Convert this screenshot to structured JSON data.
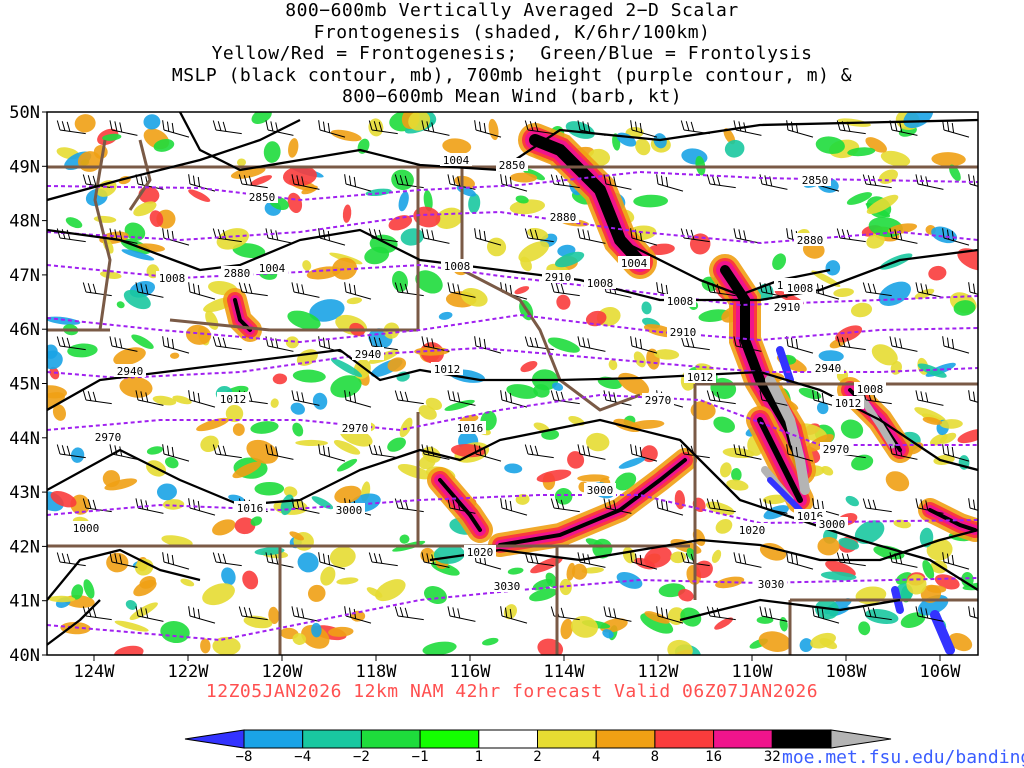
{
  "title_lines": [
    "800−600mb Vertically Averaged 2−D Scalar",
    "Frontogenesis (shaded, K/6hr/100km)",
    "Yellow/Red = Frontogenesis;  Green/Blue = Frontolysis",
    "MSLP (black contour, mb), 700mb height (purple contour, m) &",
    "800−600mb Mean Wind (barb, kt)"
  ],
  "valid_text": "12Z05JAN2026 12km NAM 42hr forecast Valid 06Z07JAN2026",
  "credit": "moe.met.fsu.edu/banding",
  "lat_labels": [
    "50N",
    "49N",
    "48N",
    "47N",
    "46N",
    "45N",
    "44N",
    "43N",
    "42N",
    "41N",
    "40N"
  ],
  "lon_labels": [
    "124W",
    "122W",
    "120W",
    "118W",
    "116W",
    "114W",
    "112W",
    "110W",
    "108W",
    "106W"
  ],
  "colorbar": {
    "labels": [
      "−8",
      "−4",
      "−2",
      "−1",
      "1",
      "2",
      "4",
      "8",
      "16",
      "32"
    ],
    "colors": [
      "#3333ff",
      "#1aa3e6",
      "#19c8a0",
      "#1edc3c",
      "#14ff00",
      "#ffffff",
      "#e6dc32",
      "#f0a014",
      "#fa3c3c",
      "#f0148c",
      "#000000",
      "#b4b4b4"
    ]
  },
  "mslp_labels": [
    "1004",
    "1004",
    "1004",
    "1004",
    "1008",
    "1008",
    "1008",
    "1008",
    "1008",
    "1008",
    "1012",
    "1012",
    "1012",
    "1012",
    "1016",
    "1016",
    "1016",
    "1020",
    "1020",
    "1000"
  ],
  "height_labels": [
    "2850",
    "2850",
    "2850",
    "2880",
    "2880",
    "2880",
    "2910",
    "2910",
    "2910",
    "2940",
    "2940",
    "2940",
    "2970",
    "2970",
    "2970",
    "2970",
    "3000",
    "3000",
    "3000",
    "3030",
    "3030"
  ],
  "colors": {
    "mslp": "#000000",
    "height": "#a020f0",
    "border": "#7a5a46",
    "valid": "#ff5050",
    "credit": "#3a5dff"
  }
}
